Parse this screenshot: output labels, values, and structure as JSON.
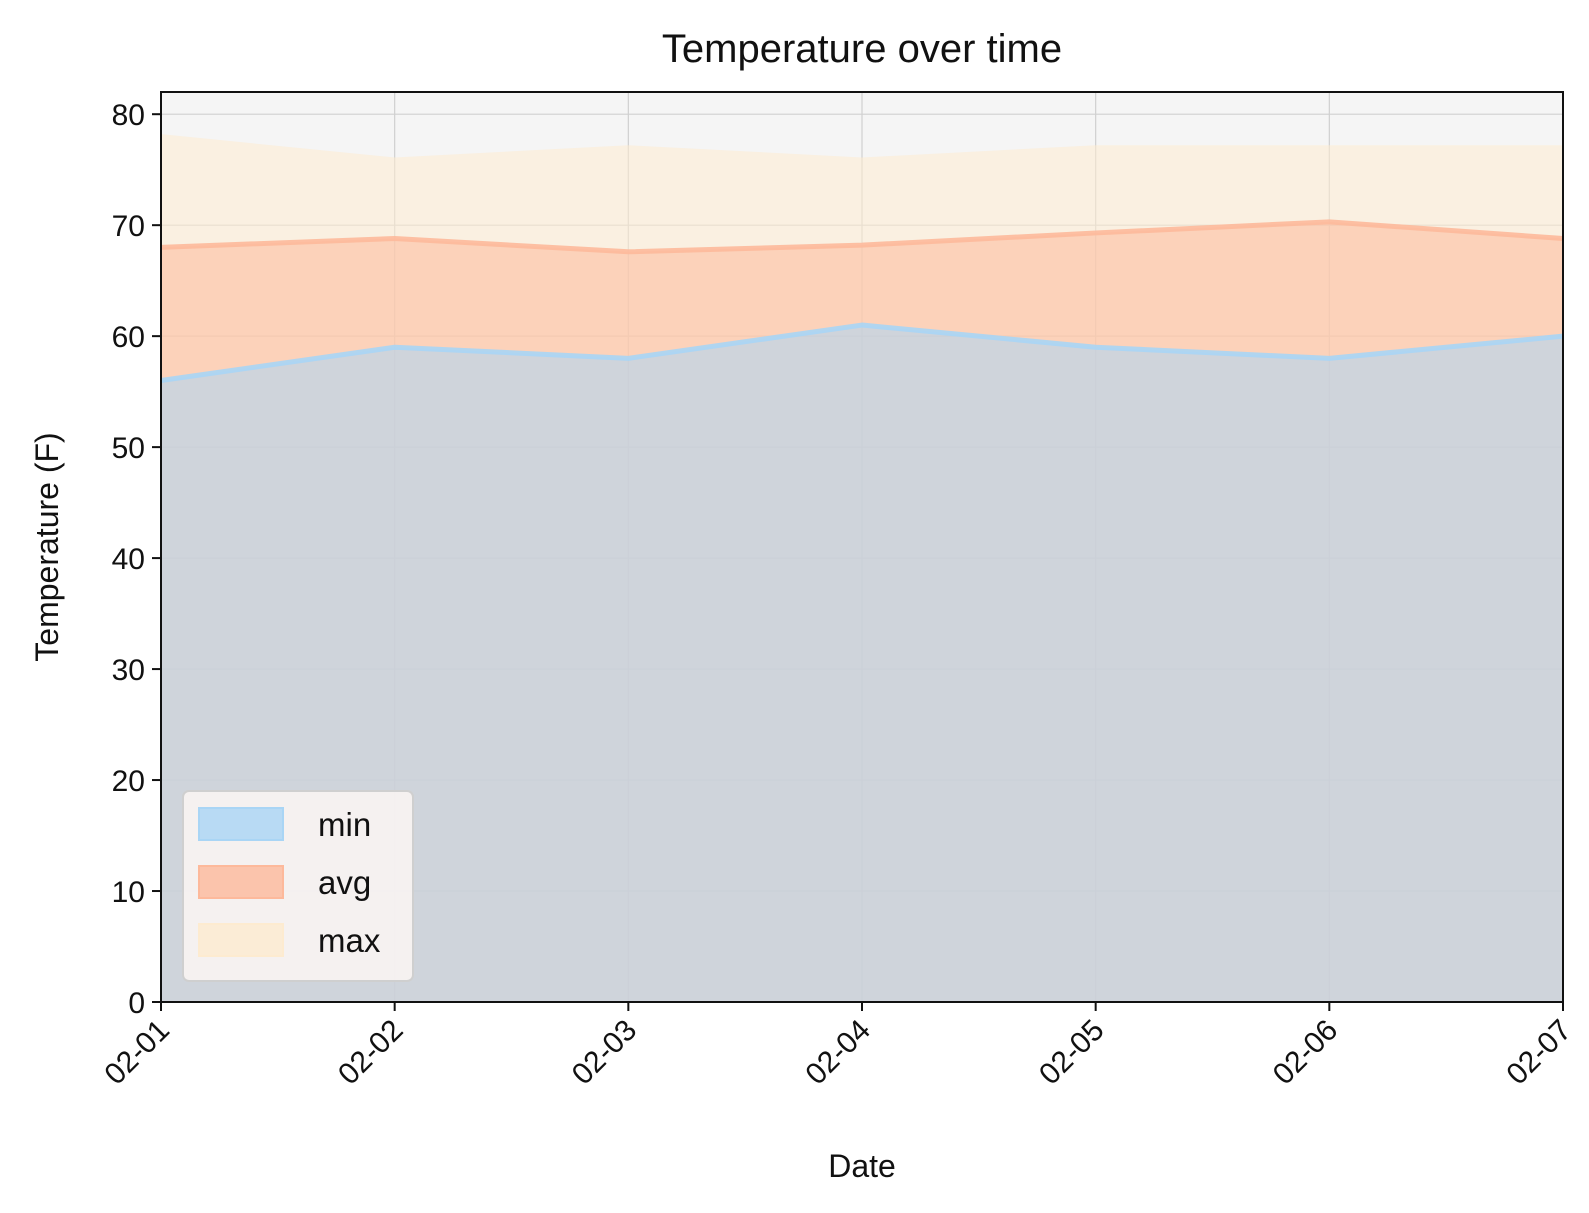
{
  "chart_data": {
    "type": "area",
    "title": "Temperature over time",
    "xlabel": "Date",
    "ylabel": "Temperature (F)",
    "categories": [
      "02-01",
      "02-02",
      "02-03",
      "02-04",
      "02-05",
      "02-06",
      "02-07"
    ],
    "series": [
      {
        "name": "min",
        "values": [
          56,
          59,
          58,
          61,
          59,
          58,
          60
        ],
        "color": "#a9d5f5"
      },
      {
        "name": "avg",
        "values": [
          68,
          68.8,
          67.6,
          68.2,
          69.3,
          70.3,
          68.8
        ],
        "color": "#fdb99b"
      },
      {
        "name": "max",
        "values": [
          78.2,
          76.1,
          77.2,
          76.1,
          77.2,
          77.2,
          77.2
        ],
        "color": "#fdebd0"
      }
    ],
    "ylim": [
      0,
      82
    ],
    "yticks": [
      0,
      10,
      20,
      30,
      40,
      50,
      60,
      70,
      80
    ],
    "grid": true,
    "legend": "lower-left",
    "plot_background": "#f5f5f5"
  }
}
